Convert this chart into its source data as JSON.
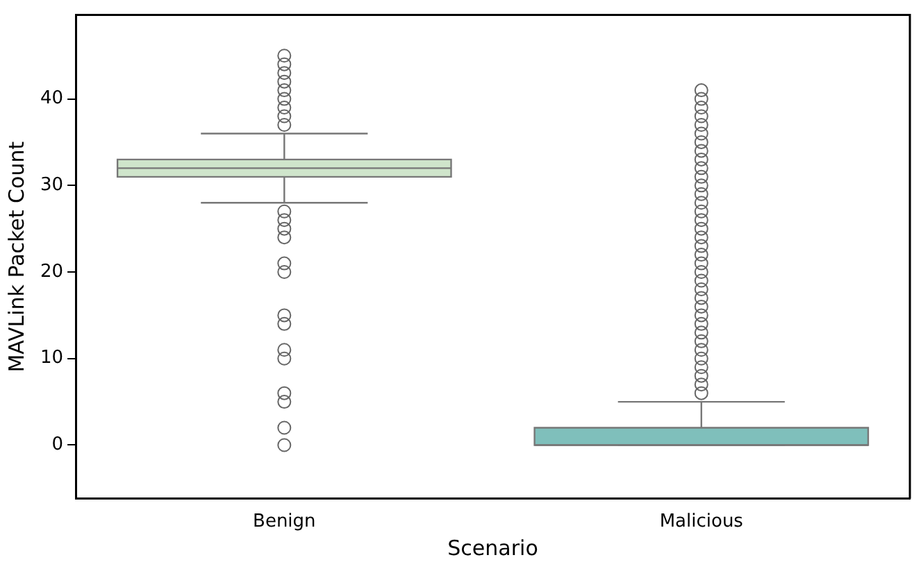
{
  "chart_data": {
    "type": "box",
    "xlabel": "Scenario",
    "ylabel": "MAVLink Packet Count",
    "categories": [
      "Benign",
      "Malicious"
    ],
    "colors": [
      "#cfe5cb",
      "#7fbfbb"
    ],
    "boxes": [
      {
        "low": 28,
        "q1": 31,
        "median": 32,
        "q3": 33,
        "high": 36,
        "outliers": [
          0,
          2,
          5,
          6,
          10,
          11,
          14,
          15,
          20,
          21,
          24,
          25,
          26,
          27,
          37,
          38,
          39,
          40,
          41,
          42,
          43,
          44,
          45
        ]
      },
      {
        "low": 0,
        "q1": 0,
        "median": 0,
        "q3": 2,
        "high": 5,
        "outliers": [
          6,
          7,
          8,
          9,
          10,
          11,
          12,
          13,
          14,
          15,
          16,
          17,
          18,
          19,
          20,
          21,
          22,
          23,
          24,
          25,
          26,
          27,
          28,
          29,
          30,
          31,
          32,
          33,
          34,
          35,
          36,
          37,
          38,
          39,
          40,
          41
        ]
      }
    ],
    "ylim": [
      -6.2,
      49.7
    ],
    "yticks": [
      0,
      10,
      20,
      30,
      40
    ],
    "grid": false,
    "legend": false
  }
}
